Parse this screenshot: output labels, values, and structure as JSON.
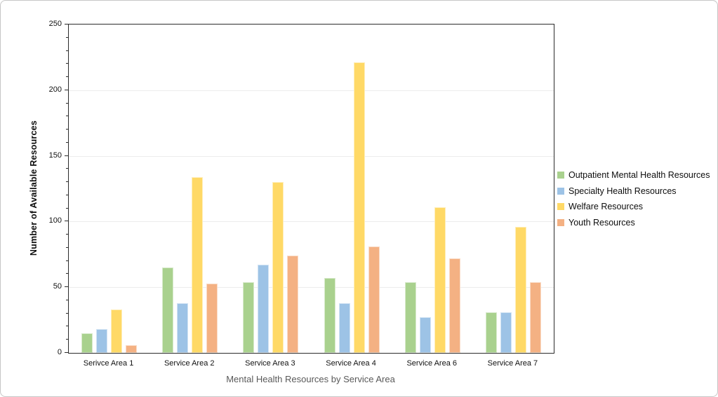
{
  "chart_data": {
    "type": "bar",
    "title": "",
    "xlabel": "Mental Health Resources by Service Area",
    "ylabel": "Number of Available Resources",
    "categories": [
      "Serivce Area 1",
      "Service Area 2",
      "Service Area 3",
      "Service Area 4",
      "Service Area 6",
      "Service Area 7"
    ],
    "series": [
      {
        "name": "Outpatient Mental Health Resources",
        "color": "#A9D18E",
        "values": [
          15,
          65,
          54,
          57,
          54,
          31
        ]
      },
      {
        "name": "Specialty Health Resources",
        "color": "#9DC3E6",
        "values": [
          18,
          38,
          67,
          38,
          27,
          31
        ]
      },
      {
        "name": "Welfare Resources",
        "color": "#FFD966",
        "values": [
          33,
          134,
          130,
          221,
          111,
          96
        ]
      },
      {
        "name": "Youth Resources",
        "color": "#F4B183",
        "values": [
          6,
          53,
          74,
          81,
          72,
          54
        ]
      }
    ],
    "ylim": [
      0,
      250
    ],
    "ytick_interval": 50,
    "ytick_labels": [
      "0",
      "50",
      "100",
      "150",
      "200",
      "250"
    ],
    "minor_tick_interval": 10,
    "grid": "horizontal",
    "gridline_color": "#ececec",
    "axis_color": "#2b2b2b",
    "legend_position": "right"
  }
}
